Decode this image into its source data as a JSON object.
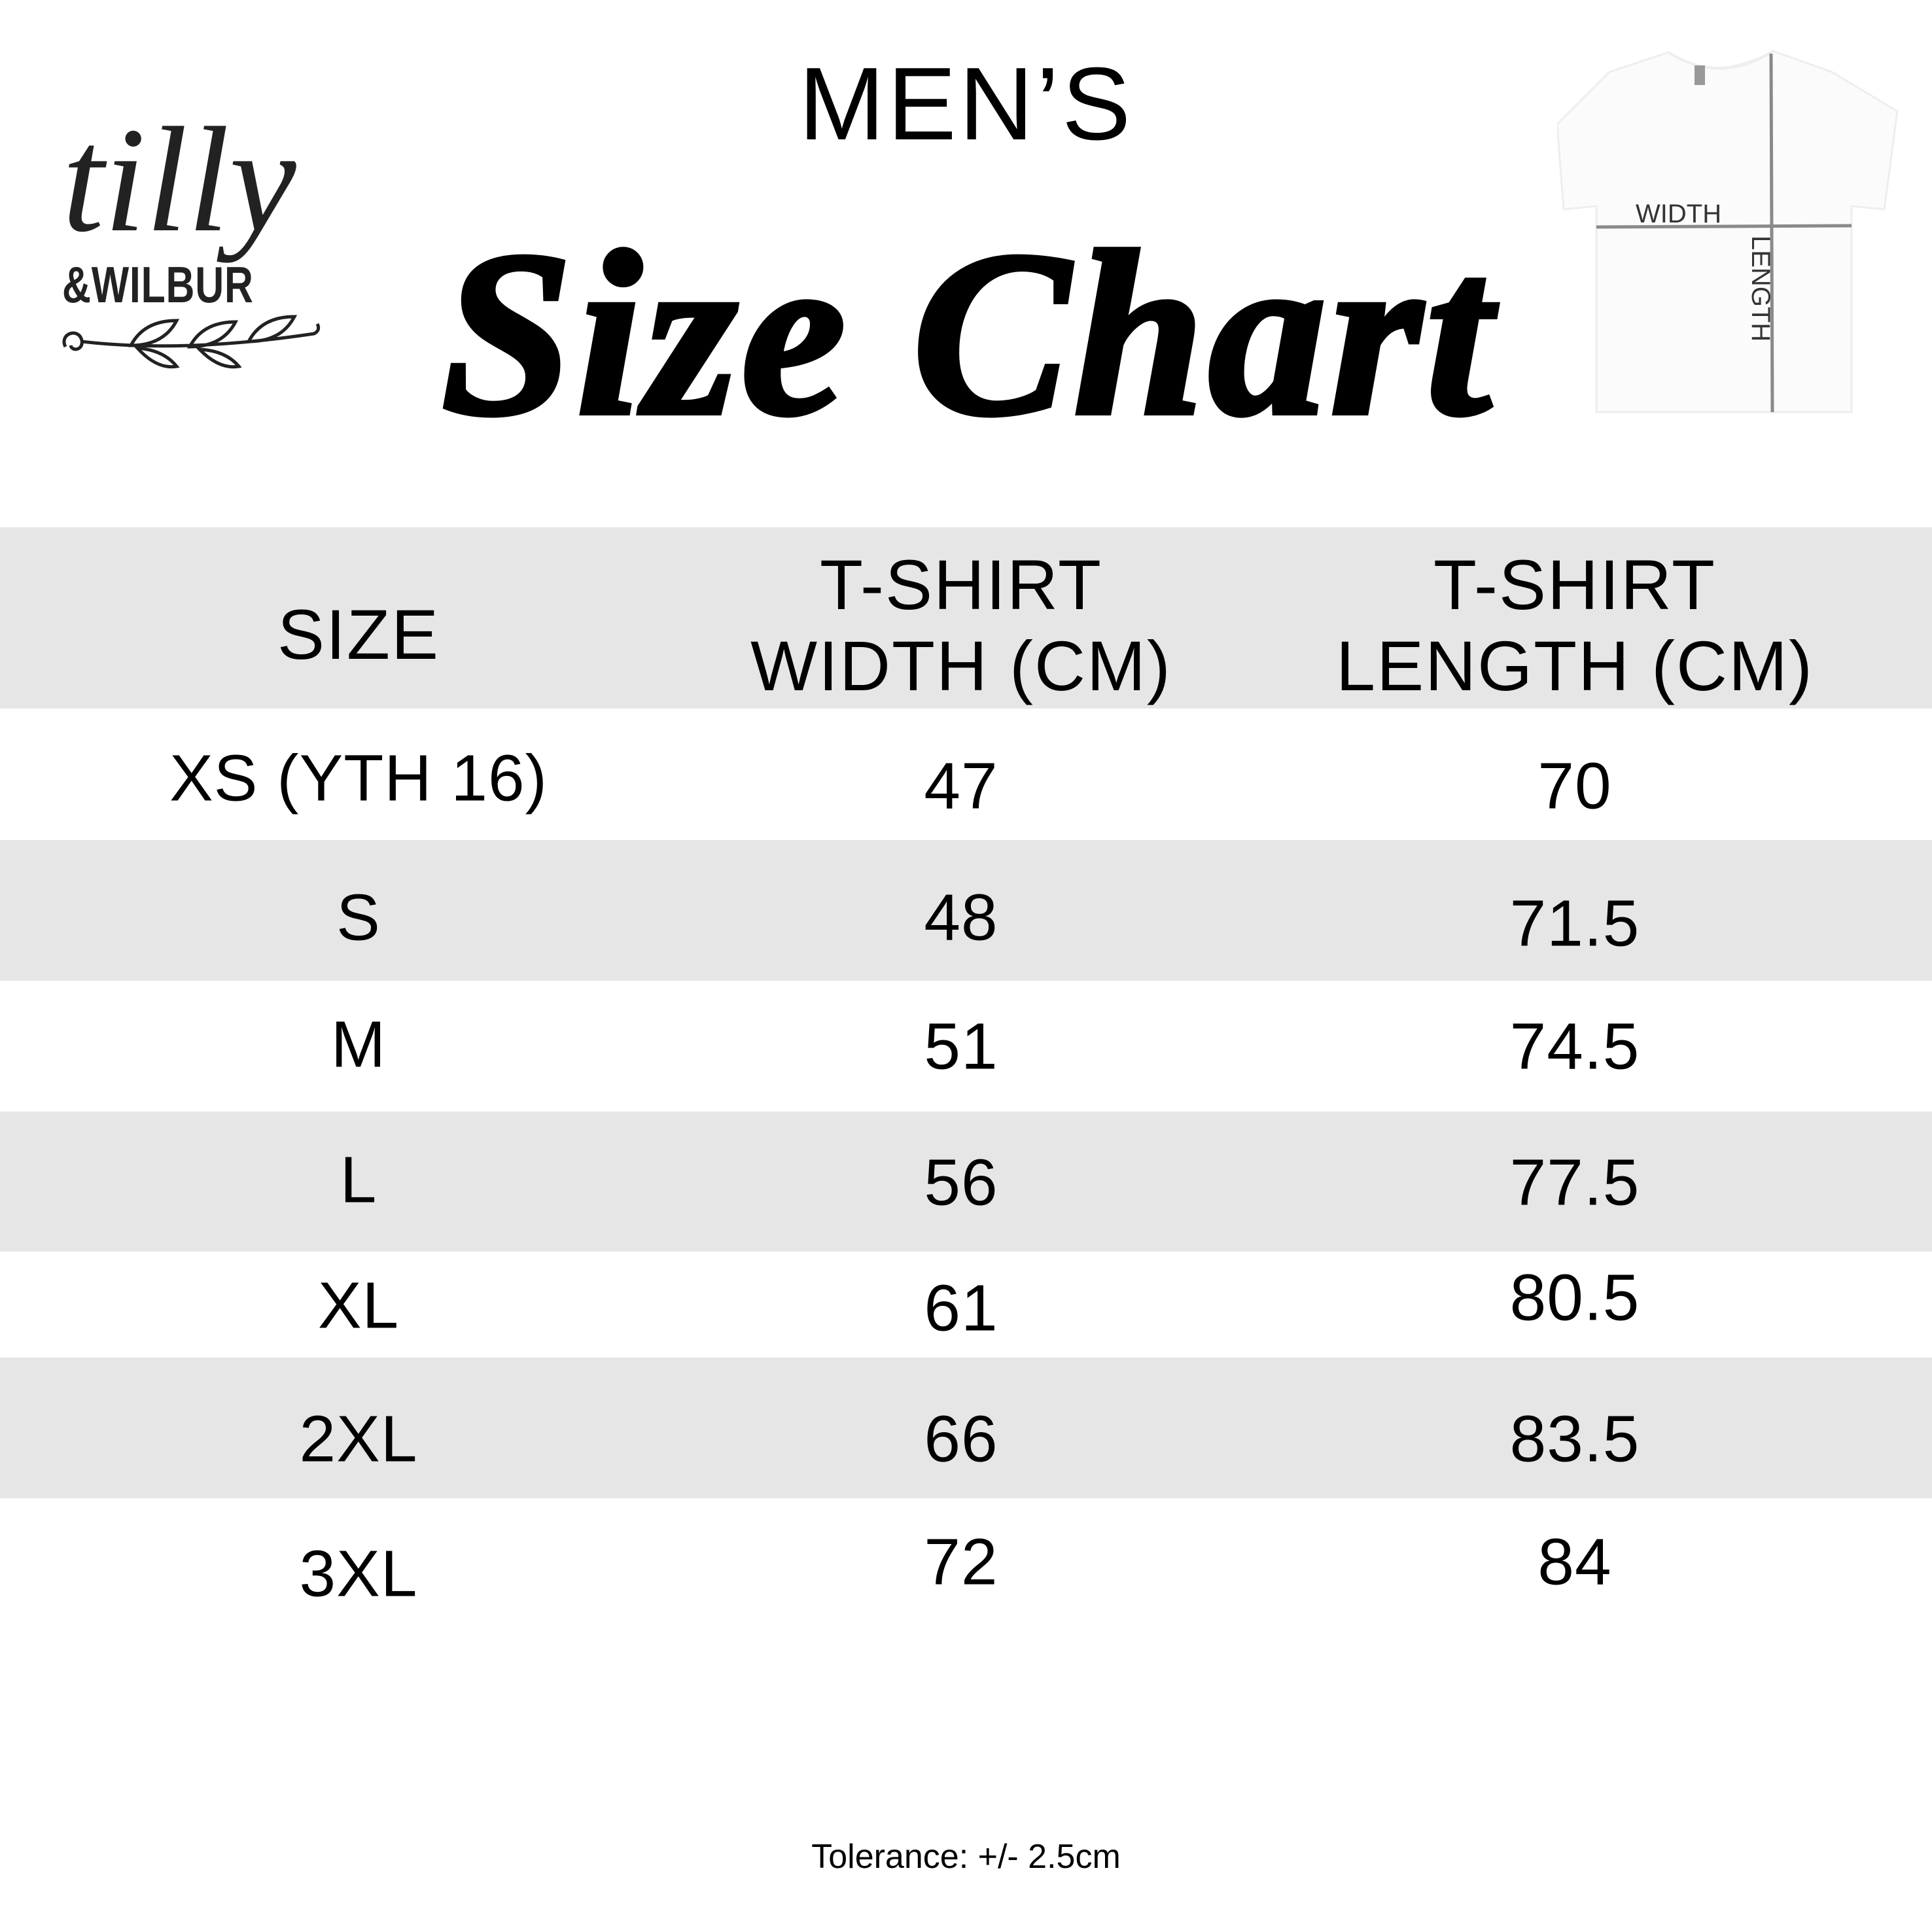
{
  "brand": {
    "line1": "tilly",
    "line2": "&WILBUR"
  },
  "heading": {
    "top": "MEN’S",
    "main": "Size Chart"
  },
  "diagram": {
    "width_label": "WIDTH",
    "length_label": "LENGTH",
    "line_color": "#8a8a8a"
  },
  "table": {
    "headers": [
      "SIZE",
      "T-SHIRT\nWIDTH (CM)",
      "T-SHIRT\nLENGTH (CM)"
    ],
    "header_lines": {
      "size": "SIZE",
      "width1": "T-SHIRT",
      "width2": "WIDTH (CM)",
      "length1": "T-SHIRT",
      "length2": "LENGTH (CM)"
    },
    "rows": [
      {
        "size": "XS (YTH 16)",
        "width": "47",
        "length": "70"
      },
      {
        "size": "S",
        "width": "48",
        "length": "71.5"
      },
      {
        "size": "M",
        "width": "51",
        "length": "74.5"
      },
      {
        "size": "L",
        "width": "56",
        "length": "77.5"
      },
      {
        "size": "XL",
        "width": "61",
        "length": "80.5"
      },
      {
        "size": "2XL",
        "width": "66",
        "length": "83.5"
      },
      {
        "size": "3XL",
        "width": "72",
        "length": "84"
      }
    ],
    "band_color": "#e6e6e6"
  },
  "footer": {
    "tolerance": "Tolerance: +/- 2.5cm"
  }
}
